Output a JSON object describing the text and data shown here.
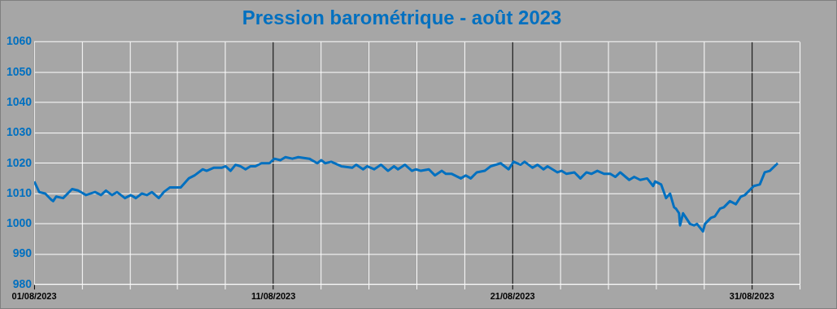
{
  "chart_data": {
    "type": "line",
    "title": "Pression barométrique - août 2023",
    "xlim": [
      "2023-08-01",
      "2023-09-02"
    ],
    "xticks": [
      {
        "value": "2023-08-01",
        "label": "01/08/2023"
      },
      {
        "value": "2023-08-03",
        "label": null
      },
      {
        "value": "2023-08-05",
        "label": null
      },
      {
        "value": "2023-08-07",
        "label": null
      },
      {
        "value": "2023-08-09",
        "label": null
      },
      {
        "value": "2023-08-11",
        "label": "11/08/2023"
      },
      {
        "value": "2023-08-13",
        "label": null
      },
      {
        "value": "2023-08-15",
        "label": null
      },
      {
        "value": "2023-08-17",
        "label": null
      },
      {
        "value": "2023-08-19",
        "label": null
      },
      {
        "value": "2023-08-21",
        "label": "21/08/2023"
      },
      {
        "value": "2023-08-23",
        "label": null
      },
      {
        "value": "2023-08-25",
        "label": null
      },
      {
        "value": "2023-08-27",
        "label": null
      },
      {
        "value": "2023-08-29",
        "label": null
      },
      {
        "value": "2023-08-31",
        "label": "31/08/2023"
      },
      {
        "value": "2023-09-02",
        "label": null
      }
    ],
    "ylim": [
      980,
      1060
    ],
    "yticks": [
      980,
      990,
      1000,
      1010,
      1020,
      1030,
      1040,
      1050,
      1060
    ],
    "grid": true,
    "legend": false,
    "marker": "none",
    "line_style": "solid",
    "series": [
      {
        "color": "#0070c0",
        "x": [
          "2023-08-01T00:00",
          "2023-08-01T05:00",
          "2023-08-01T11:00",
          "2023-08-01T17:00",
          "2023-08-01T19:00",
          "2023-08-01T22:00",
          "2023-08-02T05:00",
          "2023-08-02T14:00",
          "2023-08-02T20:00",
          "2023-08-03T04:00",
          "2023-08-03T13:00",
          "2023-08-03T19:00",
          "2023-08-04T00:00",
          "2023-08-04T06:00",
          "2023-08-04T11:00",
          "2023-08-04T19:00",
          "2023-08-05T01:00",
          "2023-08-05T06:00",
          "2023-08-05T12:00",
          "2023-08-05T17:00",
          "2023-08-05T22:00",
          "2023-08-06T05:00",
          "2023-08-06T10:00",
          "2023-08-06T16:00",
          "2023-08-07T03:00",
          "2023-08-07T11:00",
          "2023-08-07T17:00",
          "2023-08-08T01:00",
          "2023-08-08T05:00",
          "2023-08-08T12:00",
          "2023-08-08T20:00",
          "2023-08-09T00:00",
          "2023-08-09T05:00",
          "2023-08-09T10:00",
          "2023-08-09T15:00",
          "2023-08-09T20:00",
          "2023-08-10T01:00",
          "2023-08-10T06:00",
          "2023-08-10T12:00",
          "2023-08-10T20:00",
          "2023-08-11T01:00",
          "2023-08-11T07:00",
          "2023-08-11T12:00",
          "2023-08-11T19:00",
          "2023-08-12T01:00",
          "2023-08-12T12:00",
          "2023-08-12T20:00",
          "2023-08-13T00:00",
          "2023-08-13T04:00",
          "2023-08-13T10:00",
          "2023-08-13T20:00",
          "2023-08-14T07:00",
          "2023-08-14T11:00",
          "2023-08-14T18:00",
          "2023-08-14T22:00",
          "2023-08-15T05:00",
          "2023-08-15T12:00",
          "2023-08-15T19:00",
          "2023-08-16T01:00",
          "2023-08-16T05:00",
          "2023-08-16T12:00",
          "2023-08-16T19:00",
          "2023-08-16T23:00",
          "2023-08-17T04:00",
          "2023-08-17T12:00",
          "2023-08-17T18:00",
          "2023-08-18T01:00",
          "2023-08-18T05:00",
          "2023-08-18T11:00",
          "2023-08-18T20:00",
          "2023-08-19T01:00",
          "2023-08-19T06:00",
          "2023-08-19T12:00",
          "2023-08-19T20:00",
          "2023-08-20T02:00",
          "2023-08-20T12:00",
          "2023-08-20T20:00",
          "2023-08-21T01:00",
          "2023-08-21T08:00",
          "2023-08-21T12:00",
          "2023-08-21T20:00",
          "2023-08-22T01:00",
          "2023-08-22T07:00",
          "2023-08-22T11:00",
          "2023-08-22T21:00",
          "2023-08-23T01:00",
          "2023-08-23T06:00",
          "2023-08-23T14:00",
          "2023-08-23T20:00",
          "2023-08-24T02:00",
          "2023-08-24T07:00",
          "2023-08-24T13:00",
          "2023-08-24T20:00",
          "2023-08-25T02:00",
          "2023-08-25T07:00",
          "2023-08-25T12:00",
          "2023-08-25T21:00",
          "2023-08-26T02:00",
          "2023-08-26T08:00",
          "2023-08-26T15:00",
          "2023-08-26T21:00",
          "2023-08-26T23:00",
          "2023-08-27T05:00",
          "2023-08-27T10:00",
          "2023-08-27T14:00",
          "2023-08-27T18:00",
          "2023-08-27T20:00",
          "2023-08-27T23:00",
          "2023-08-28T00:00",
          "2023-08-28T03:00",
          "2023-08-28T06:00",
          "2023-08-28T10:00",
          "2023-08-28T14:00",
          "2023-08-28T17:00",
          "2023-08-28T23:00",
          "2023-08-29T01:00",
          "2023-08-29T07:00",
          "2023-08-29T11:00",
          "2023-08-29T16:00",
          "2023-08-29T20:00",
          "2023-08-30T02:00",
          "2023-08-30T08:00",
          "2023-08-30T13:00",
          "2023-08-30T17:00",
          "2023-08-31T02:00",
          "2023-08-31T08:00",
          "2023-08-31T13:00",
          "2023-08-31T18:00",
          "2023-09-01T02:00"
        ],
        "values": [
          1014,
          1010.5,
          1010,
          1008,
          1007.5,
          1009,
          1008.5,
          1011.5,
          1011,
          1009.5,
          1010.5,
          1009.5,
          1011,
          1009.5,
          1010.5,
          1008.5,
          1009.5,
          1008.5,
          1010,
          1009.5,
          1010.5,
          1008.5,
          1010.5,
          1012,
          1012,
          1015,
          1016,
          1018,
          1017.5,
          1018.5,
          1018.5,
          1019,
          1017.5,
          1019.5,
          1019,
          1018,
          1019,
          1019,
          1020,
          1020,
          1021.5,
          1021,
          1022,
          1021.5,
          1022,
          1021.5,
          1020,
          1021,
          1020,
          1020.5,
          1019,
          1018.5,
          1019.5,
          1018,
          1019,
          1018,
          1019.5,
          1017.5,
          1019,
          1018,
          1019.5,
          1017.5,
          1018,
          1017.5,
          1018,
          1016,
          1017.5,
          1016.5,
          1016.5,
          1015,
          1016,
          1015,
          1017,
          1017.5,
          1019,
          1020,
          1018,
          1020.5,
          1019.5,
          1020.5,
          1018.5,
          1019.5,
          1018,
          1019,
          1017,
          1017.5,
          1016.5,
          1017,
          1015,
          1017,
          1016.5,
          1017.5,
          1016.5,
          1016.5,
          1015.5,
          1017,
          1014.5,
          1015.5,
          1014.5,
          1015,
          1012.5,
          1014,
          1013,
          1008.5,
          1010,
          1005.5,
          1005,
          1003.5,
          999.5,
          1003.5,
          1002,
          1000,
          999.5,
          1000,
          997.5,
          1000,
          1002,
          1002.5,
          1005,
          1005.5,
          1007.5,
          1006.5,
          1009,
          1009.5,
          1012.5,
          1013,
          1017,
          1017.5,
          1020
        ]
      }
    ]
  }
}
